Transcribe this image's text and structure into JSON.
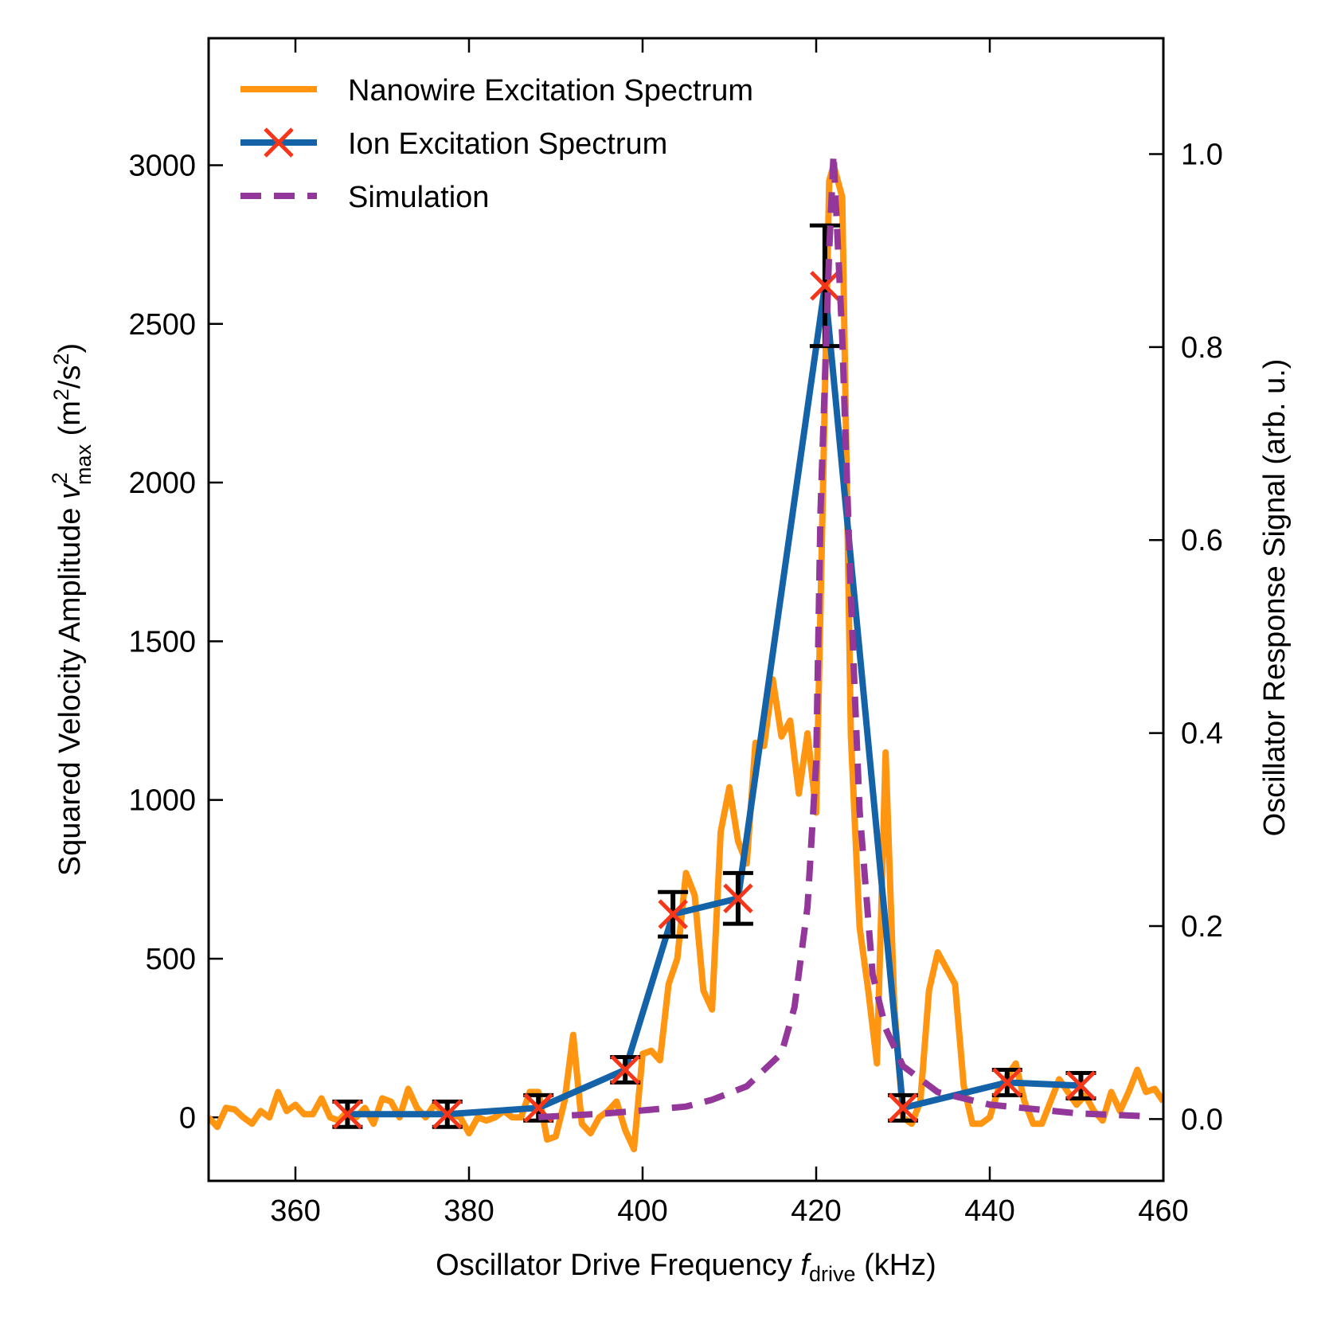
{
  "chart_data": {
    "type": "line",
    "xlabel": [
      "Oscillator Drive Frequency ",
      "f",
      "drive",
      " (kHz)"
    ],
    "ylabel": [
      "Squared Velocity Amplitude ",
      "v",
      "2",
      "max",
      " (m",
      "2",
      "/s",
      "2",
      ")"
    ],
    "y2label": "Oscillator Response Signal (arb. u.)",
    "xlim": [
      350,
      460
    ],
    "xticks": [
      360,
      380,
      400,
      420,
      440,
      460
    ],
    "ylim": [
      -200,
      3400
    ],
    "yticks": [
      0,
      500,
      1000,
      1500,
      2000,
      2500,
      3000
    ],
    "y2lim": [
      -0.064,
      1.12
    ],
    "y2ticks": [
      {
        "value": 0,
        "label": "0.0"
      },
      0.2,
      0.4,
      0.6,
      0.8,
      {
        "value": 1,
        "label": "1.0"
      }
    ],
    "legend": "upper left",
    "series": [
      {
        "name": "Nanowire Excitation Spectrum",
        "color": "#ff9510",
        "x": [
          350,
          351,
          352,
          353,
          354,
          355,
          356,
          357,
          358,
          359,
          360,
          361,
          362,
          363,
          364,
          365,
          366,
          367,
          368,
          369,
          370,
          371,
          372,
          373,
          374,
          375,
          376,
          377,
          378,
          379,
          380,
          381,
          382,
          383,
          384,
          385,
          386,
          387,
          388,
          389,
          390,
          391,
          392,
          393,
          394,
          395,
          396,
          397,
          398,
          399,
          400,
          401,
          402,
          403,
          404,
          405,
          406,
          407,
          408,
          409,
          410,
          411,
          412,
          413,
          414,
          415,
          416,
          417,
          418,
          419,
          420,
          420.8,
          421.5,
          422,
          423,
          424,
          425,
          426,
          427,
          428,
          429,
          430,
          431,
          432,
          433,
          434,
          435,
          436,
          437,
          438,
          439,
          440,
          441,
          442,
          443,
          444,
          445,
          446,
          447,
          448,
          449,
          450,
          451,
          452,
          453,
          454,
          455,
          456,
          457,
          458,
          459,
          460
        ],
        "values": [
          0,
          -30,
          30,
          25,
          0,
          -20,
          20,
          0,
          80,
          20,
          40,
          10,
          10,
          60,
          0,
          -10,
          20,
          0,
          30,
          -20,
          60,
          50,
          0,
          90,
          30,
          0,
          40,
          20,
          10,
          0,
          -50,
          0,
          -10,
          0,
          20,
          0,
          0,
          80,
          80,
          -70,
          -60,
          50,
          260,
          -20,
          -50,
          0,
          20,
          50,
          -40,
          -100,
          200,
          210,
          180,
          420,
          500,
          770,
          700,
          400,
          340,
          900,
          1040,
          870,
          800,
          1180,
          1170,
          1380,
          1200,
          1250,
          1020,
          1210,
          960,
          2000,
          2950,
          3000,
          2900,
          1200,
          600,
          400,
          170,
          1150,
          350,
          0,
          -20,
          50,
          400,
          520,
          470,
          420,
          100,
          -20,
          -20,
          0,
          90,
          130,
          170,
          50,
          -20,
          -20,
          50,
          120,
          80,
          40,
          70,
          20,
          -10,
          80,
          20,
          80,
          150,
          80,
          90,
          50
        ]
      },
      {
        "name": "Ion Excitation Spectrum",
        "color": "#1462a8",
        "marker_color": "#f5361a",
        "x": [
          366,
          377.5,
          388,
          398,
          403.5,
          411,
          421,
          430,
          442,
          450.5
        ],
        "values": [
          10,
          10,
          30,
          150,
          640,
          690,
          2620,
          30,
          110,
          100
        ],
        "errors": [
          40,
          40,
          40,
          40,
          70,
          80,
          190,
          40,
          40,
          40
        ],
        "error_color": "#000000"
      },
      {
        "name": "Simulation",
        "color": "#93389a",
        "axis": "y2",
        "dashed": true,
        "x": [
          388,
          392,
          396,
          400,
          405,
          408,
          410,
          412,
          416,
          417.5,
          419,
          420,
          420.5,
          421.5,
          422,
          423,
          424,
          425,
          426.5,
          428,
          430,
          434,
          440,
          450,
          458
        ],
        "values": [
          0.002,
          0.004,
          0.006,
          0.009,
          0.013,
          0.02,
          0.027,
          0.034,
          0.068,
          0.116,
          0.22,
          0.37,
          0.63,
          0.9,
          1.0,
          0.81,
          0.54,
          0.32,
          0.15,
          0.094,
          0.055,
          0.028,
          0.015,
          0.006,
          0.003
        ]
      }
    ]
  }
}
